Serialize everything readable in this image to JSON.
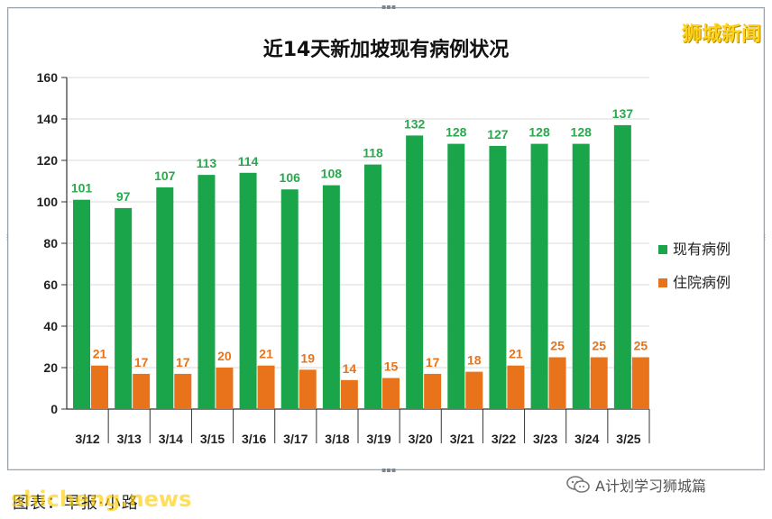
{
  "watermark": "狮城新闻",
  "chart_data": {
    "type": "bar",
    "title": "近14天新加坡现有病例状况",
    "categories": [
      "3/12",
      "3/13",
      "3/14",
      "3/15",
      "3/16",
      "3/17",
      "3/18",
      "3/19",
      "3/20",
      "3/21",
      "3/22",
      "3/23",
      "3/24",
      "3/25"
    ],
    "series": [
      {
        "name": "现有病例",
        "color": "#1aa54a",
        "label_color": "#2aa84e",
        "values": [
          101,
          97,
          107,
          113,
          114,
          106,
          108,
          118,
          132,
          128,
          127,
          128,
          128,
          137
        ]
      },
      {
        "name": "住院病例",
        "color": "#e8731a",
        "label_color": "#e8731a",
        "values": [
          21,
          17,
          17,
          20,
          21,
          19,
          14,
          15,
          17,
          18,
          21,
          25,
          25,
          25
        ]
      }
    ],
    "ylim": [
      0,
      160
    ],
    "yticks": [
      0,
      20,
      40,
      60,
      80,
      100,
      120,
      140,
      160
    ],
    "grid": true,
    "legend_position": "right",
    "xlabel": "",
    "ylabel": ""
  },
  "footer": {
    "wechat_account": "A计划学习狮城篇",
    "source_text": "图表：早报·小路",
    "source_watermark": "shicheng.news"
  }
}
